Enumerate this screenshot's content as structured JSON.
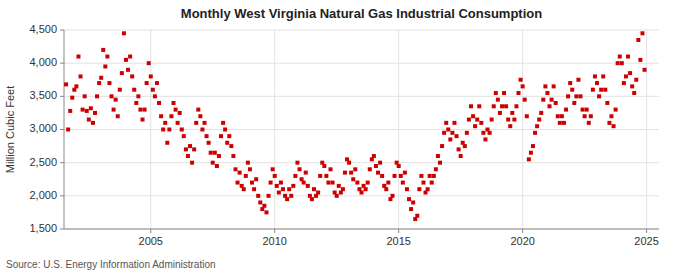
{
  "chart_data": {
    "type": "scatter",
    "title": "Monthly West Virginia Natural Gas Industrial Consumption",
    "ylabel": "Million Cubic Feet",
    "annotations": [
      "Source: U.S. Energy Information Administration"
    ],
    "color": "#cc0000",
    "marker": "square",
    "grid": true,
    "xlim": [
      2001.5,
      2025.5
    ],
    "xticks": [
      2005,
      2010,
      2015,
      2020,
      2025
    ],
    "ylim": [
      1500,
      4500
    ],
    "yticks": [
      {
        "value": 1500,
        "label": "1,500"
      },
      {
        "value": 2000,
        "label": "2,000"
      },
      {
        "value": 2500,
        "label": "2,500"
      },
      {
        "value": 3000,
        "label": "3,000"
      },
      {
        "value": 3500,
        "label": "3,500"
      },
      {
        "value": 4000,
        "label": "4,000"
      },
      {
        "value": 4500,
        "label": "4,500"
      }
    ],
    "x": [
      2001.583,
      2001.667,
      2001.75,
      2001.833,
      2001.917,
      2002.0,
      2002.083,
      2002.167,
      2002.25,
      2002.333,
      2002.417,
      2002.5,
      2002.583,
      2002.667,
      2002.75,
      2002.833,
      2002.917,
      2003.0,
      2003.083,
      2003.167,
      2003.25,
      2003.333,
      2003.417,
      2003.5,
      2003.583,
      2003.667,
      2003.75,
      2003.833,
      2003.917,
      2004.0,
      2004.083,
      2004.167,
      2004.25,
      2004.333,
      2004.417,
      2004.5,
      2004.583,
      2004.667,
      2004.75,
      2004.833,
      2004.917,
      2005.0,
      2005.083,
      2005.167,
      2005.25,
      2005.333,
      2005.417,
      2005.5,
      2005.583,
      2005.667,
      2005.75,
      2005.833,
      2005.917,
      2006.0,
      2006.083,
      2006.167,
      2006.25,
      2006.333,
      2006.417,
      2006.5,
      2006.583,
      2006.667,
      2006.75,
      2006.833,
      2006.917,
      2007.0,
      2007.083,
      2007.167,
      2007.25,
      2007.333,
      2007.417,
      2007.5,
      2007.583,
      2007.667,
      2007.75,
      2007.833,
      2007.917,
      2008.0,
      2008.083,
      2008.167,
      2008.25,
      2008.333,
      2008.417,
      2008.5,
      2008.583,
      2008.667,
      2008.75,
      2008.833,
      2008.917,
      2009.0,
      2009.083,
      2009.167,
      2009.25,
      2009.333,
      2009.417,
      2009.5,
      2009.583,
      2009.667,
      2009.75,
      2009.833,
      2009.917,
      2010.0,
      2010.083,
      2010.167,
      2010.25,
      2010.333,
      2010.417,
      2010.5,
      2010.583,
      2010.667,
      2010.75,
      2010.833,
      2010.917,
      2011.0,
      2011.083,
      2011.167,
      2011.25,
      2011.333,
      2011.417,
      2011.5,
      2011.583,
      2011.667,
      2011.75,
      2011.833,
      2011.917,
      2012.0,
      2012.083,
      2012.167,
      2012.25,
      2012.333,
      2012.417,
      2012.5,
      2012.583,
      2012.667,
      2012.75,
      2012.833,
      2012.917,
      2013.0,
      2013.083,
      2013.167,
      2013.25,
      2013.333,
      2013.417,
      2013.5,
      2013.583,
      2013.667,
      2013.75,
      2013.833,
      2013.917,
      2014.0,
      2014.083,
      2014.167,
      2014.25,
      2014.333,
      2014.417,
      2014.5,
      2014.583,
      2014.667,
      2014.75,
      2014.833,
      2014.917,
      2015.0,
      2015.083,
      2015.167,
      2015.25,
      2015.333,
      2015.417,
      2015.5,
      2015.583,
      2015.667,
      2015.75,
      2015.833,
      2015.917,
      2016.0,
      2016.083,
      2016.167,
      2016.25,
      2016.333,
      2016.417,
      2016.5,
      2016.583,
      2016.667,
      2016.75,
      2016.833,
      2016.917,
      2017.0,
      2017.083,
      2017.167,
      2017.25,
      2017.333,
      2017.417,
      2017.5,
      2017.583,
      2017.667,
      2017.75,
      2017.833,
      2017.917,
      2018.0,
      2018.083,
      2018.167,
      2018.25,
      2018.333,
      2018.417,
      2018.5,
      2018.583,
      2018.667,
      2018.75,
      2018.833,
      2018.917,
      2019.0,
      2019.083,
      2019.167,
      2019.25,
      2019.333,
      2019.417,
      2019.5,
      2019.583,
      2019.667,
      2019.75,
      2019.833,
      2019.917,
      2020.0,
      2020.083,
      2020.167,
      2020.25,
      2020.333,
      2020.417,
      2020.5,
      2020.583,
      2020.667,
      2020.75,
      2020.833,
      2020.917,
      2021.0,
      2021.083,
      2021.167,
      2021.25,
      2021.333,
      2021.417,
      2021.5,
      2021.583,
      2021.667,
      2021.75,
      2021.833,
      2021.917,
      2022.0,
      2022.083,
      2022.167,
      2022.25,
      2022.333,
      2022.417,
      2022.5,
      2022.583,
      2022.667,
      2022.75,
      2022.833,
      2022.917,
      2023.0,
      2023.083,
      2023.167,
      2023.25,
      2023.333,
      2023.417,
      2023.5,
      2023.583,
      2023.667,
      2023.75,
      2023.833,
      2023.917,
      2024.0,
      2024.083,
      2024.167,
      2024.25,
      2024.333,
      2024.417,
      2024.5,
      2024.583,
      2024.667,
      2024.75,
      2024.833,
      2024.917
    ],
    "values": [
      3680,
      3000,
      3280,
      3480,
      3600,
      3650,
      4100,
      3800,
      3300,
      3500,
      3280,
      3150,
      3320,
      3100,
      3250,
      3500,
      3700,
      3780,
      4200,
      3950,
      4100,
      3700,
      3500,
      3300,
      3450,
      3200,
      3600,
      3850,
      4450,
      4050,
      3900,
      4100,
      3800,
      3600,
      3400,
      3500,
      3300,
      3150,
      3300,
      3700,
      4000,
      3800,
      3600,
      3500,
      3700,
      3400,
      3200,
      3000,
      3100,
      2800,
      3000,
      3200,
      3400,
      3300,
      3100,
      3250,
      3000,
      2900,
      2700,
      2600,
      2750,
      2500,
      2700,
      3100,
      3300,
      3200,
      3000,
      3100,
      2900,
      2800,
      2650,
      2500,
      2650,
      2450,
      2600,
      2900,
      3100,
      3000,
      2800,
      2900,
      2750,
      2600,
      2400,
      2200,
      2350,
      2150,
      2100,
      2300,
      2500,
      2400,
      2200,
      2100,
      2250,
      2000,
      1900,
      1800,
      1850,
      1750,
      2000,
      2200,
      2400,
      2300,
      2150,
      2050,
      2200,
      2100,
      2000,
      1950,
      2100,
      2000,
      2150,
      2300,
      2500,
      2400,
      2250,
      2200,
      2350,
      2150,
      2000,
      1950,
      2100,
      2000,
      2050,
      2300,
      2500,
      2450,
      2300,
      2200,
      2400,
      2200,
      2050,
      2000,
      2150,
      2050,
      2100,
      2350,
      2550,
      2500,
      2350,
      2250,
      2400,
      2200,
      2100,
      2050,
      2150,
      2100,
      2200,
      2400,
      2550,
      2600,
      2450,
      2350,
      2500,
      2300,
      2150,
      2100,
      2200,
      1950,
      2000,
      2300,
      2500,
      2450,
      2300,
      2200,
      2350,
      2100,
      1950,
      1800,
      1900,
      1650,
      1700,
      2100,
      2300,
      2200,
      2050,
      2100,
      2300,
      2200,
      2300,
      2400,
      2600,
      2500,
      2750,
      2950,
      3100,
      3000,
      2850,
      2950,
      3100,
      2900,
      2700,
      2600,
      2800,
      2750,
      2950,
      3150,
      3350,
      3200,
      3050,
      3150,
      3350,
      3100,
      2950,
      2850,
      3000,
      2950,
      3150,
      3350,
      3550,
      3450,
      3250,
      3350,
      3550,
      3350,
      3150,
      3050,
      3250,
      3150,
      3350,
      3550,
      3750,
      3650,
      3450,
      3200,
      2550,
      2650,
      2750,
      2950,
      3050,
      3150,
      3250,
      3450,
      3650,
      3550,
      3350,
      3450,
      3650,
      3400,
      3200,
      3100,
      3200,
      3100,
      3300,
      3500,
      3700,
      3600,
      3400,
      3500,
      3750,
      3500,
      3300,
      3200,
      3300,
      3100,
      3200,
      3600,
      3800,
      3700,
      3500,
      3600,
      3800,
      3600,
      3400,
      3100,
      3200,
      3050,
      3300,
      4000,
      4100,
      4000,
      3700,
      3800,
      4100,
      3850,
      3650,
      3550,
      3750,
      4350,
      4050,
      4450,
      3900
    ]
  }
}
